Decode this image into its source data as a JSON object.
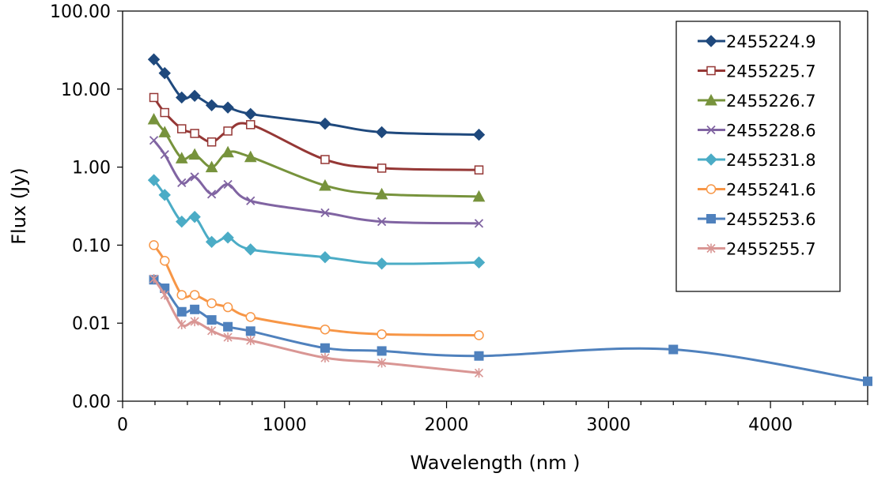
{
  "chart_data": {
    "type": "line",
    "xlabel": "Wavelength (nm )",
    "ylabel": "Flux (Jy)",
    "xlim": [
      0,
      4600
    ],
    "ylim": [
      0.001,
      100
    ],
    "yscale": "log",
    "x_ticks": [
      0,
      1000,
      2000,
      3000,
      4000
    ],
    "x_tick_labels": [
      "0",
      "1000",
      "2000",
      "3000",
      "4000"
    ],
    "y_ticks": [
      0.001,
      0.01,
      0.1,
      1,
      10,
      100
    ],
    "y_tick_labels": [
      "0.00",
      "0.01",
      "0.10",
      "1.00",
      "10.00",
      "100.00"
    ],
    "grid": false,
    "legend_position": "top-right",
    "series": [
      {
        "name": "2455224.9",
        "color": "#1f497d",
        "marker": "diamond-filled",
        "x": [
          193,
          260,
          365,
          445,
          550,
          650,
          790,
          1250,
          1600,
          2200
        ],
        "y": [
          24,
          16,
          7.8,
          8.2,
          6.2,
          5.8,
          4.8,
          3.6,
          2.8,
          2.6
        ]
      },
      {
        "name": "2455225.7",
        "color": "#953735",
        "marker": "square-open",
        "x": [
          193,
          260,
          365,
          445,
          550,
          650,
          790,
          1250,
          1600,
          2200
        ],
        "y": [
          7.8,
          5.0,
          3.1,
          2.7,
          2.1,
          2.9,
          3.5,
          1.25,
          0.97,
          0.92
        ]
      },
      {
        "name": "2455226.7",
        "color": "#77933c",
        "marker": "triangle-filled",
        "x": [
          193,
          260,
          365,
          445,
          550,
          650,
          790,
          1250,
          1600,
          2200
        ],
        "y": [
          4.1,
          2.8,
          1.3,
          1.45,
          1.0,
          1.55,
          1.35,
          0.58,
          0.45,
          0.42
        ]
      },
      {
        "name": "2455228.6",
        "color": "#8064a2",
        "marker": "x",
        "x": [
          193,
          260,
          365,
          445,
          550,
          650,
          790,
          1250,
          1600,
          2200
        ],
        "y": [
          2.2,
          1.45,
          0.63,
          0.75,
          0.45,
          0.6,
          0.37,
          0.26,
          0.2,
          0.19
        ]
      },
      {
        "name": "2455231.8",
        "color": "#4bacc6",
        "marker": "diamond-filled",
        "x": [
          193,
          260,
          365,
          445,
          550,
          650,
          790,
          1250,
          1600,
          2200
        ],
        "y": [
          0.68,
          0.44,
          0.2,
          0.23,
          0.11,
          0.125,
          0.088,
          0.07,
          0.058,
          0.06
        ]
      },
      {
        "name": "2455241.6",
        "color": "#f79646",
        "marker": "circle-open",
        "x": [
          193,
          260,
          365,
          445,
          550,
          650,
          790,
          1250,
          1600,
          2200
        ],
        "y": [
          0.1,
          0.063,
          0.023,
          0.023,
          0.018,
          0.016,
          0.012,
          0.0083,
          0.0072,
          0.007
        ]
      },
      {
        "name": "2455253.6",
        "color": "#4f81bd",
        "marker": "square-filled",
        "x": [
          193,
          260,
          365,
          445,
          550,
          650,
          790,
          1250,
          1600,
          2200,
          3400,
          4600
        ],
        "y": [
          0.036,
          0.028,
          0.014,
          0.015,
          0.011,
          0.009,
          0.0079,
          0.0048,
          0.0044,
          0.0038,
          0.0046,
          0.0018
        ]
      },
      {
        "name": "2455255.7",
        "color": "#d99694",
        "marker": "star",
        "x": [
          193,
          260,
          365,
          445,
          550,
          650,
          790,
          1250,
          1600,
          2200
        ],
        "y": [
          0.037,
          0.023,
          0.0096,
          0.0105,
          0.008,
          0.0066,
          0.006,
          0.0036,
          0.0031,
          0.0023
        ]
      }
    ]
  }
}
